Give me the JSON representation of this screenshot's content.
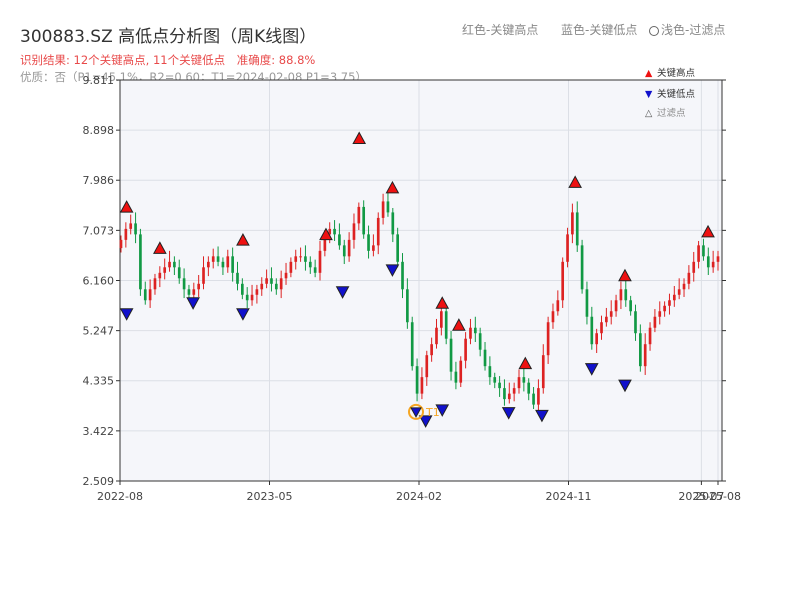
{
  "header": {
    "title": "300883.SZ 高低点分析图（周K线图）",
    "legend_red": "红色-关键高点",
    "legend_blue": "蓝色-关键低点",
    "legend_light": "浅色-过滤点",
    "result": "识别结果: 12个关键高点, 11个关键低点",
    "accuracy": "准确度: 88.8%",
    "quality": "优质：否（P1=45.1%，R2=0.60；T1=2024-02-08 P1=3.75）"
  },
  "legend_box": {
    "high_label": "关键高点",
    "low_label": "关键低点",
    "filtered_label": "过滤点"
  },
  "colors": {
    "up": "#dd2222",
    "down": "#119944",
    "high_marker": "#ee1111",
    "low_marker": "#1111cc",
    "t1": "#f5a623"
  },
  "chart_data": {
    "type": "candlestick",
    "ylim": [
      2.509,
      9.811
    ],
    "y_ticks": [
      "2.509",
      "3.422",
      "4.335",
      "5.247",
      "6.160",
      "7.073",
      "7.986",
      "8.898",
      "9.811"
    ],
    "x_ticks": [
      "2022-08",
      "2023-05",
      "2024-02",
      "2024-11",
      "2025-07",
      "2025-08"
    ],
    "close_series": [
      6.9,
      7.1,
      7.2,
      7.0,
      6.0,
      5.8,
      6.0,
      6.2,
      6.3,
      6.4,
      6.5,
      6.4,
      6.2,
      6.0,
      5.9,
      6.0,
      6.1,
      6.4,
      6.5,
      6.6,
      6.5,
      6.4,
      6.6,
      6.3,
      6.1,
      5.9,
      5.8,
      5.9,
      6.0,
      6.1,
      6.2,
      6.1,
      6.0,
      6.2,
      6.3,
      6.5,
      6.6,
      6.6,
      6.5,
      6.4,
      6.3,
      6.7,
      7.0,
      7.1,
      7.0,
      6.8,
      6.6,
      6.9,
      7.2,
      7.5,
      7.0,
      6.7,
      6.8,
      7.3,
      7.6,
      7.4,
      7.0,
      6.5,
      6.0,
      5.4,
      4.6,
      4.1,
      4.4,
      4.8,
      5.0,
      5.3,
      5.6,
      5.1,
      4.5,
      4.3,
      4.7,
      5.1,
      5.3,
      5.2,
      4.9,
      4.6,
      4.4,
      4.3,
      4.2,
      4.0,
      4.1,
      4.2,
      4.4,
      4.3,
      4.1,
      3.9,
      4.2,
      4.8,
      5.4,
      5.6,
      5.8,
      6.5,
      7.0,
      7.4,
      6.8,
      6.0,
      5.5,
      5.0,
      5.2,
      5.4,
      5.5,
      5.6,
      5.8,
      6.0,
      5.8,
      5.6,
      5.2,
      4.6,
      5.0,
      5.3,
      5.5,
      5.6,
      5.7,
      5.8,
      5.9,
      6.0,
      6.1,
      6.3,
      6.5,
      6.8,
      6.6,
      6.4,
      6.5,
      6.6
    ],
    "key_highs": [
      {
        "date": "2022-08",
        "price": 7.35
      },
      {
        "date": "2022-10",
        "price": 6.6
      },
      {
        "date": "2023-03",
        "price": 6.75
      },
      {
        "date": "2023-08",
        "price": 6.85
      },
      {
        "date": "2023-10",
        "price": 8.6
      },
      {
        "date": "2023-12",
        "price": 7.7
      },
      {
        "date": "2024-03",
        "price": 5.6
      },
      {
        "date": "2024-04",
        "price": 5.2
      },
      {
        "date": "2024-08",
        "price": 4.5
      },
      {
        "date": "2024-11",
        "price": 7.8
      },
      {
        "date": "2025-02",
        "price": 6.1
      },
      {
        "date": "2025-07",
        "price": 6.9
      }
    ],
    "key_lows": [
      {
        "date": "2022-08",
        "price": 5.7
      },
      {
        "date": "2022-12",
        "price": 5.9
      },
      {
        "date": "2023-03",
        "price": 5.7
      },
      {
        "date": "2023-09",
        "price": 6.1
      },
      {
        "date": "2023-12",
        "price": 6.5
      },
      {
        "date": "2024-02",
        "price": 3.75
      },
      {
        "date": "2024-03",
        "price": 3.95
      },
      {
        "date": "2024-07",
        "price": 3.9
      },
      {
        "date": "2024-09",
        "price": 3.85
      },
      {
        "date": "2024-12",
        "price": 4.7
      },
      {
        "date": "2025-02",
        "price": 4.4
      }
    ],
    "t1": {
      "label": "T1",
      "date": "2024-02-08",
      "price": 3.75
    }
  }
}
